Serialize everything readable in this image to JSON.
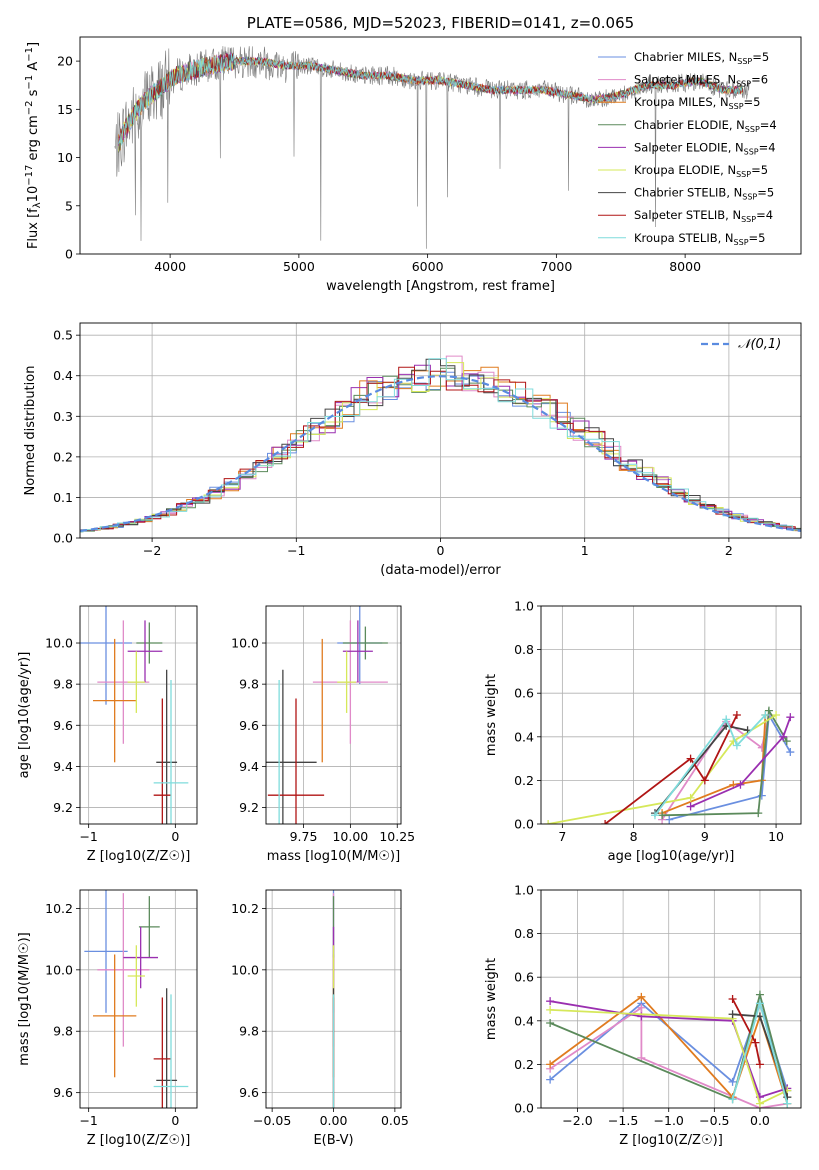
{
  "title": "PLATE=0586, MJD=52023, FIBERID=0141, z=0.065",
  "colors": {
    "Chabrier MILES": "#6a8fe0",
    "Salpeter MILES": "#e08ac8",
    "Kroupa MILES": "#e07b1f",
    "Chabrier ELODIE": "#5b8a5b",
    "Salpeter ELODIE": "#9a2fb0",
    "Kroupa ELODIE": "#d6e85a",
    "Chabrier STELIB": "#444444",
    "Salpeter STELIB": "#b01515",
    "Kroupa STELIB": "#7fdcdc",
    "data": "#7a7a7a",
    "gauss": "#5a8be0"
  },
  "chart_data": [
    {
      "id": "spectrum",
      "type": "line",
      "title": "PLATE=0586, MJD=52023, FIBERID=0141, z=0.065",
      "xlabel": "wavelength [Angstrom, rest frame]",
      "ylabel": "Flux [f_λ 10^-17 erg cm^-2 s^-1 A^-1]",
      "xlim": [
        3300,
        8900
      ],
      "ylim": [
        0,
        22.5
      ],
      "xticks": [
        4000,
        5000,
        6000,
        7000,
        8000
      ],
      "yticks": [
        0,
        5,
        10,
        15,
        20
      ],
      "legend_position": "right",
      "legend": [
        "Chabrier MILES, N_SSP=5",
        "Salpeter MILES, N_SSP=6",
        "Kroupa MILES, N_SSP=5",
        "Chabrier ELODIE, N_SSP=4",
        "Salpeter ELODIE, N_SSP=4",
        "Kroupa ELODIE, N_SSP=5",
        "Chabrier STELIB, N_SSP=5",
        "Salpeter STELIB, N_SSP=4",
        "Kroupa STELIB, N_SSP=5"
      ],
      "continuum": {
        "x": [
          3570,
          3650,
          3750,
          3850,
          3950,
          4050,
          4150,
          4300,
          4500,
          4700,
          4900,
          5100,
          5300,
          5500,
          5700,
          5900,
          6100,
          6300,
          6500,
          6700,
          6900,
          7100,
          7300,
          7500,
          7700,
          7900,
          8100,
          8300,
          8500
        ],
        "y": [
          10.5,
          13.0,
          15.0,
          16.5,
          17.5,
          18.5,
          19.0,
          19.5,
          20.0,
          20.0,
          19.5,
          19.5,
          19.0,
          18.5,
          18.5,
          18.0,
          18.0,
          17.5,
          17.0,
          17.0,
          17.0,
          16.5,
          16.0,
          16.5,
          17.5,
          17.5,
          18.0,
          17.0,
          17.0
        ]
      }
    },
    {
      "id": "residuals",
      "type": "line",
      "xlabel": "(data-model)/error",
      "ylabel": "Normed distribution",
      "xlim": [
        -2.5,
        2.5
      ],
      "ylim": [
        0,
        0.53
      ],
      "xticks": [
        -2,
        -1,
        0,
        1,
        2
      ],
      "yticks": [
        0.0,
        0.1,
        0.2,
        0.3,
        0.4,
        0.5
      ],
      "legend": [
        "𝒩(0,1)"
      ],
      "legend_position": "top-right",
      "reference_curve": "normal pdf, mean 0, sigma 1"
    },
    {
      "id": "age_vs_Z",
      "type": "scatter",
      "xlabel": "Z [log10(Z/Z☉)]",
      "ylabel": "age  [log10(age/yr)]",
      "xlim": [
        -1.1,
        0.25
      ],
      "ylim": [
        9.12,
        10.18
      ],
      "xticks": [
        -1,
        0
      ],
      "yticks": [
        9.2,
        9.4,
        9.6,
        9.8,
        10.0
      ],
      "points": [
        {
          "series": "Chabrier MILES",
          "x": -0.8,
          "y": 10.0,
          "xerr": 0.3,
          "yerr": 0.3
        },
        {
          "series": "Salpeter MILES",
          "x": -0.6,
          "y": 9.81,
          "xerr": 0.3,
          "yerr": 0.3
        },
        {
          "series": "Kroupa MILES",
          "x": -0.7,
          "y": 9.72,
          "xerr": 0.25,
          "yerr": 0.3
        },
        {
          "series": "Chabrier ELODIE",
          "x": -0.3,
          "y": 10.0,
          "xerr": 0.15,
          "yerr": 0.1
        },
        {
          "series": "Salpeter ELODIE",
          "x": -0.35,
          "y": 9.96,
          "xerr": 0.2,
          "yerr": 0.15
        },
        {
          "series": "Kroupa ELODIE",
          "x": -0.45,
          "y": 9.81,
          "xerr": 0.1,
          "yerr": 0.15
        },
        {
          "series": "Chabrier STELIB",
          "x": -0.1,
          "y": 9.42,
          "xerr": 0.12,
          "yerr": 0.45
        },
        {
          "series": "Salpeter STELIB",
          "x": -0.15,
          "y": 9.26,
          "xerr": 0.1,
          "yerr": 0.47
        },
        {
          "series": "Kroupa STELIB",
          "x": -0.05,
          "y": 9.32,
          "xerr": 0.2,
          "yerr": 0.5
        }
      ]
    },
    {
      "id": "age_vs_mass",
      "type": "scatter",
      "xlabel": "mass [log10(M/M☉)]",
      "ylabel": "",
      "xlim": [
        9.55,
        10.27
      ],
      "ylim": [
        9.12,
        10.18
      ],
      "xticks": [
        9.75,
        10.0,
        10.25
      ],
      "yticks": [
        9.2,
        9.4,
        9.6,
        9.8,
        10.0
      ],
      "points": [
        {
          "series": "Chabrier MILES",
          "x": 10.05,
          "y": 10.0,
          "xerr": 0.12,
          "yerr": 0.2
        },
        {
          "series": "Salpeter MILES",
          "x": 10.0,
          "y": 9.81,
          "xerr": 0.2,
          "yerr": 0.3
        },
        {
          "series": "Kroupa MILES",
          "x": 9.85,
          "y": 9.72,
          "xerr": 0.0,
          "yerr": 0.3
        },
        {
          "series": "Chabrier ELODIE",
          "x": 10.08,
          "y": 10.0,
          "xerr": 0.12,
          "yerr": 0.08
        },
        {
          "series": "Salpeter ELODIE",
          "x": 10.04,
          "y": 9.96,
          "xerr": 0.08,
          "yerr": 0.15
        },
        {
          "series": "Kroupa ELODIE",
          "x": 9.98,
          "y": 9.81,
          "xerr": 0.05,
          "yerr": 0.15
        },
        {
          "series": "Chabrier STELIB",
          "x": 9.64,
          "y": 9.42,
          "xerr": 0.18,
          "yerr": 0.45
        },
        {
          "series": "Salpeter STELIB",
          "x": 9.71,
          "y": 9.26,
          "xerr": 0.15,
          "yerr": 0.47
        },
        {
          "series": "Kroupa STELIB",
          "x": 9.62,
          "y": 9.32,
          "xerr": 0.0,
          "yerr": 0.5
        }
      ]
    },
    {
      "id": "weight_vs_age",
      "type": "line",
      "xlabel": "age  [log10(age/yr)]",
      "ylabel": "mass weight",
      "xlim": [
        6.7,
        10.35
      ],
      "ylim": [
        0,
        1.0
      ],
      "xticks": [
        7,
        8,
        9,
        10
      ],
      "yticks": [
        0.0,
        0.2,
        0.4,
        0.6,
        0.8,
        1.0
      ],
      "series": [
        {
          "name": "Chabrier MILES",
          "x": [
            8.5,
            9.8,
            9.9,
            10.2
          ],
          "y": [
            0.02,
            0.13,
            0.5,
            0.33
          ]
        },
        {
          "name": "Salpeter MILES",
          "x": [
            8.4,
            9.3,
            9.8,
            9.9
          ],
          "y": [
            0.02,
            0.47,
            0.35,
            0.5
          ]
        },
        {
          "name": "Kroupa MILES",
          "x": [
            8.4,
            9.4,
            9.8,
            9.85
          ],
          "y": [
            0.05,
            0.18,
            0.2,
            0.5
          ]
        },
        {
          "name": "Chabrier ELODIE",
          "x": [
            8.4,
            9.75,
            9.9,
            10.15
          ],
          "y": [
            0.04,
            0.05,
            0.52,
            0.38
          ]
        },
        {
          "name": "Salpeter ELODIE",
          "x": [
            8.8,
            9.5,
            10.1,
            10.2
          ],
          "y": [
            0.08,
            0.18,
            0.4,
            0.49
          ]
        },
        {
          "name": "Kroupa ELODIE",
          "x": [
            6.8,
            8.8,
            9.4,
            10.0
          ],
          "y": [
            0.0,
            0.12,
            0.38,
            0.5
          ]
        },
        {
          "name": "Chabrier STELIB",
          "x": [
            8.3,
            9.3,
            9.6
          ],
          "y": [
            0.05,
            0.45,
            0.43
          ]
        },
        {
          "name": "Salpeter STELIB",
          "x": [
            7.6,
            8.8,
            9.0,
            9.45
          ],
          "y": [
            0.0,
            0.3,
            0.2,
            0.5
          ]
        },
        {
          "name": "Kroupa STELIB",
          "x": [
            8.3,
            9.3,
            9.45,
            9.85
          ],
          "y": [
            0.04,
            0.48,
            0.36,
            0.5
          ]
        }
      ]
    },
    {
      "id": "mass_vs_Z",
      "type": "scatter",
      "xlabel": "Z [log10(Z/Z☉)]",
      "ylabel": "mass [log10(M/M☉)]",
      "xlim": [
        -1.1,
        0.25
      ],
      "ylim": [
        9.55,
        10.26
      ],
      "xticks": [
        -1,
        0
      ],
      "yticks": [
        9.6,
        9.8,
        10.0,
        10.2
      ],
      "points": [
        {
          "series": "Chabrier MILES",
          "x": -0.8,
          "y": 10.06,
          "xerr": 0.25,
          "yerr": 0.2
        },
        {
          "series": "Salpeter MILES",
          "x": -0.6,
          "y": 10.0,
          "xerr": 0.3,
          "yerr": 0.25
        },
        {
          "series": "Kroupa MILES",
          "x": -0.7,
          "y": 9.85,
          "xerr": 0.25,
          "yerr": 0.2
        },
        {
          "series": "Chabrier ELODIE",
          "x": -0.3,
          "y": 10.14,
          "xerr": 0.12,
          "yerr": 0.1
        },
        {
          "series": "Salpeter ELODIE",
          "x": -0.4,
          "y": 10.04,
          "xerr": 0.2,
          "yerr": 0.1
        },
        {
          "series": "Kroupa ELODIE",
          "x": -0.45,
          "y": 9.98,
          "xerr": 0.1,
          "yerr": 0.1
        },
        {
          "series": "Chabrier STELIB",
          "x": -0.1,
          "y": 9.64,
          "xerr": 0.12,
          "yerr": 0.3
        },
        {
          "series": "Salpeter STELIB",
          "x": -0.15,
          "y": 9.71,
          "xerr": 0.1,
          "yerr": 0.2
        },
        {
          "series": "Kroupa STELIB",
          "x": -0.05,
          "y": 9.62,
          "xerr": 0.2,
          "yerr": 0.3
        }
      ]
    },
    {
      "id": "mass_vs_ebv",
      "type": "scatter",
      "xlabel": "E(B-V)",
      "ylabel": "",
      "xlim": [
        -0.055,
        0.055
      ],
      "ylim": [
        9.55,
        10.26
      ],
      "xticks": [
        -0.05,
        0.0,
        0.05
      ],
      "yticks": [
        9.6,
        9.8,
        10.0,
        10.2
      ],
      "points": [
        {
          "series": "Chabrier MILES",
          "x": 0.0,
          "y": 10.06,
          "yerr": 0.2
        },
        {
          "series": "Salpeter MILES",
          "x": 0.0,
          "y": 10.0,
          "yerr": 0.25
        },
        {
          "series": "Kroupa MILES",
          "x": 0.0,
          "y": 9.85,
          "yerr": 0.2
        },
        {
          "series": "Chabrier ELODIE",
          "x": 0.0,
          "y": 10.14,
          "yerr": 0.1
        },
        {
          "series": "Salpeter ELODIE",
          "x": 0.0,
          "y": 10.04,
          "yerr": 0.1
        },
        {
          "series": "Kroupa ELODIE",
          "x": 0.0,
          "y": 9.98,
          "yerr": 0.1
        },
        {
          "series": "Chabrier STELIB",
          "x": 0.0,
          "y": 9.64,
          "yerr": 0.3
        },
        {
          "series": "Salpeter STELIB",
          "x": 0.0,
          "y": 9.71,
          "yerr": 0.2
        },
        {
          "series": "Kroupa STELIB",
          "x": 0.0,
          "y": 9.62,
          "yerr": 0.3
        }
      ]
    },
    {
      "id": "weight_vs_Z",
      "type": "line",
      "xlabel": "Z [log10(Z/Z☉)]",
      "ylabel": "mass weight",
      "xlim": [
        -2.4,
        0.45
      ],
      "ylim": [
        0,
        1.0
      ],
      "xticks": [
        -2.0,
        -1.5,
        -1.0,
        -0.5,
        0.0
      ],
      "yticks": [
        0.0,
        0.2,
        0.4,
        0.6,
        0.8,
        1.0
      ],
      "series": [
        {
          "name": "Chabrier MILES",
          "x": [
            -2.3,
            -1.3,
            -0.3,
            0.0,
            0.3
          ],
          "y": [
            0.13,
            0.48,
            0.12,
            0.48,
            0.08
          ]
        },
        {
          "name": "Salpeter MILES",
          "x": [
            -2.3,
            -1.3,
            -1.3,
            0.0,
            0.3
          ],
          "y": [
            0.18,
            0.46,
            0.23,
            0.0,
            0.02
          ]
        },
        {
          "name": "Kroupa MILES",
          "x": [
            -2.3,
            -1.3,
            -0.3,
            0.0,
            0.3
          ],
          "y": [
            0.2,
            0.51,
            0.05,
            0.42,
            0.02
          ]
        },
        {
          "name": "Chabrier ELODIE",
          "x": [
            -2.3,
            -0.3,
            0.0,
            0.3
          ],
          "y": [
            0.39,
            0.04,
            0.52,
            0.05
          ]
        },
        {
          "name": "Salpeter ELODIE",
          "x": [
            -2.3,
            -1.3,
            -0.3,
            0.0,
            0.3
          ],
          "y": [
            0.49,
            0.42,
            0.4,
            0.05,
            0.09
          ]
        },
        {
          "name": "Kroupa ELODIE",
          "x": [
            -2.3,
            -0.3,
            0.0,
            0.3
          ],
          "y": [
            0.45,
            0.41,
            0.02,
            0.08
          ]
        },
        {
          "name": "Chabrier STELIB",
          "x": [
            -0.3,
            0.0,
            0.3
          ],
          "y": [
            0.43,
            0.42,
            0.05
          ]
        },
        {
          "name": "Salpeter STELIB",
          "x": [
            -0.3,
            -0.05,
            0.0
          ],
          "y": [
            0.5,
            0.3,
            0.2
          ]
        },
        {
          "name": "Kroupa STELIB",
          "x": [
            -0.3,
            0.0,
            0.3
          ],
          "y": [
            0.04,
            0.48,
            0.02
          ]
        }
      ]
    }
  ]
}
